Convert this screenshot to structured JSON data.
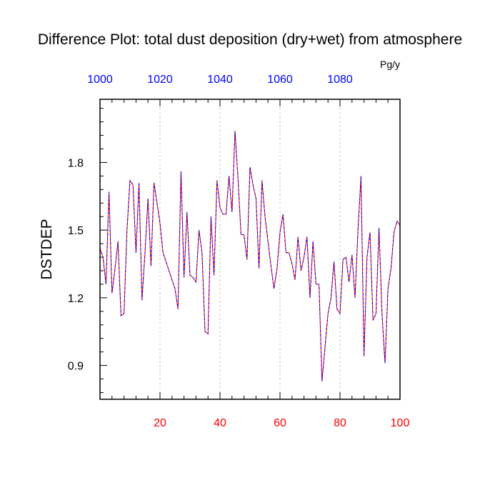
{
  "chart_data": {
    "type": "line",
    "title": "Difference Plot: total dust deposition (dry+wet) from atmosphere",
    "ylabel": "DSTDEP",
    "top_unit": "Pg/y",
    "xlim": [
      0,
      100
    ],
    "ylim": [
      0.75,
      2.08
    ],
    "x_ticks": [
      20,
      40,
      60,
      80,
      100
    ],
    "y_ticks": [
      0.9,
      1.2,
      1.5,
      1.8
    ],
    "y_tick_labels": [
      "0.9",
      "1.2",
      "1.5",
      "1.8"
    ],
    "top_axis": {
      "ticks": [
        1000,
        1020,
        1040,
        1060,
        1080
      ],
      "range": [
        1000,
        1100
      ]
    },
    "grid": "x-dashed",
    "colors": {
      "bottom_ticks": "#ff0000",
      "top_ticks": "#0000ff",
      "line_a": "#ff0000",
      "line_b": "#0000ff"
    },
    "series": [
      {
        "line_style": "dashed-overlay",
        "x": [
          0,
          1,
          2,
          3,
          4,
          5,
          6,
          7,
          8,
          9,
          10,
          11,
          12,
          13,
          14,
          15,
          16,
          17,
          18,
          19,
          20,
          21,
          22,
          23,
          24,
          25,
          26,
          27,
          28,
          29,
          30,
          31,
          32,
          33,
          34,
          35,
          36,
          37,
          38,
          39,
          40,
          41,
          42,
          43,
          44,
          45,
          46,
          47,
          48,
          49,
          50,
          51,
          52,
          53,
          54,
          55,
          56,
          57,
          58,
          59,
          60,
          61,
          62,
          63,
          64,
          65,
          66,
          67,
          68,
          69,
          70,
          71,
          72,
          73,
          74,
          75,
          76,
          77,
          78,
          79,
          80,
          81,
          82,
          83,
          84,
          85,
          86,
          87,
          88,
          89,
          90,
          91,
          92,
          93,
          94,
          95,
          96,
          97,
          98,
          99,
          100
        ],
        "y": [
          1.42,
          1.38,
          1.26,
          1.67,
          1.22,
          1.33,
          1.45,
          1.12,
          1.13,
          1.5,
          1.72,
          1.7,
          1.4,
          1.71,
          1.19,
          1.4,
          1.64,
          1.34,
          1.71,
          1.62,
          1.53,
          1.4,
          1.36,
          1.32,
          1.28,
          1.24,
          1.15,
          1.76,
          1.29,
          1.58,
          1.3,
          1.29,
          1.27,
          1.5,
          1.4,
          1.05,
          1.04,
          1.56,
          1.3,
          1.72,
          1.6,
          1.57,
          1.57,
          1.74,
          1.58,
          1.94,
          1.73,
          1.48,
          1.48,
          1.37,
          1.78,
          1.7,
          1.64,
          1.33,
          1.72,
          1.56,
          1.45,
          1.34,
          1.24,
          1.33,
          1.49,
          1.57,
          1.4,
          1.4,
          1.35,
          1.28,
          1.47,
          1.32,
          1.38,
          1.47,
          1.2,
          1.45,
          1.26,
          1.26,
          0.83,
          0.98,
          1.13,
          1.2,
          1.36,
          1.15,
          1.13,
          1.37,
          1.38,
          1.27,
          1.39,
          1.2,
          1.5,
          1.74,
          0.94,
          1.38,
          1.49,
          1.1,
          1.13,
          1.51,
          1.13,
          0.91,
          1.24,
          1.33,
          1.49,
          1.54,
          1.52
        ]
      }
    ]
  }
}
